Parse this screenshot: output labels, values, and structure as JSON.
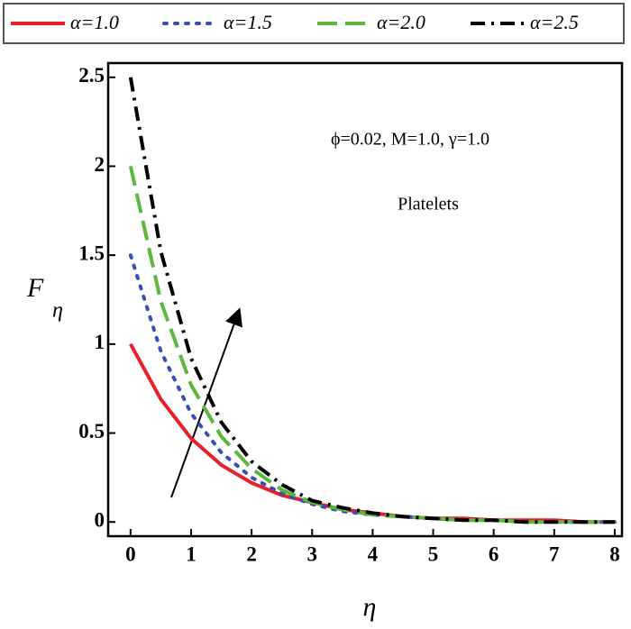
{
  "chart_data": {
    "type": "line",
    "x_label": "η",
    "y_label": "F",
    "y_label_subscript": "η",
    "annotations": [
      "ϕ=0.02, M=1.0, γ=1.0",
      "Platelets"
    ],
    "x": [
      0,
      0.5,
      1,
      1.5,
      2,
      2.5,
      3,
      3.5,
      4,
      4.5,
      5,
      5.5,
      6,
      6.5,
      7,
      7.5,
      8
    ],
    "series": [
      {
        "name": "α=1.0",
        "color": "#e8202a",
        "dash": "solid",
        "values": [
          1.0,
          0.69,
          0.47,
          0.32,
          0.22,
          0.15,
          0.11,
          0.07,
          0.05,
          0.03,
          0.02,
          0.02,
          0.01,
          0.01,
          0.01,
          0.0,
          0.0
        ]
      },
      {
        "name": "α=1.5",
        "color": "#3a4fb4",
        "dash": "dot",
        "values": [
          1.5,
          0.96,
          0.61,
          0.39,
          0.25,
          0.16,
          0.1,
          0.06,
          0.04,
          0.03,
          0.02,
          0.01,
          0.01,
          0.0,
          0.0,
          0.0,
          0.0
        ]
      },
      {
        "name": "α=2.0",
        "color": "#5cb83c",
        "dash": "dash",
        "values": [
          2.0,
          1.24,
          0.77,
          0.48,
          0.3,
          0.18,
          0.11,
          0.07,
          0.04,
          0.03,
          0.02,
          0.01,
          0.01,
          0.0,
          0.0,
          0.0,
          0.0
        ]
      },
      {
        "name": "α=2.5",
        "color": "#000000",
        "dash": "dashdot",
        "values": [
          2.5,
          1.52,
          0.92,
          0.56,
          0.34,
          0.21,
          0.12,
          0.08,
          0.05,
          0.03,
          0.02,
          0.01,
          0.01,
          0.0,
          0.0,
          0.0,
          0.0
        ]
      }
    ],
    "xlim": [
      -0.37,
      8.12
    ],
    "ylim": [
      -0.08,
      2.58
    ],
    "xticks": [
      0,
      1,
      2,
      3,
      4,
      5,
      6,
      7,
      8
    ],
    "yticks": [
      0,
      0.5,
      1,
      1.5,
      2,
      2.5
    ],
    "legend": "top"
  }
}
